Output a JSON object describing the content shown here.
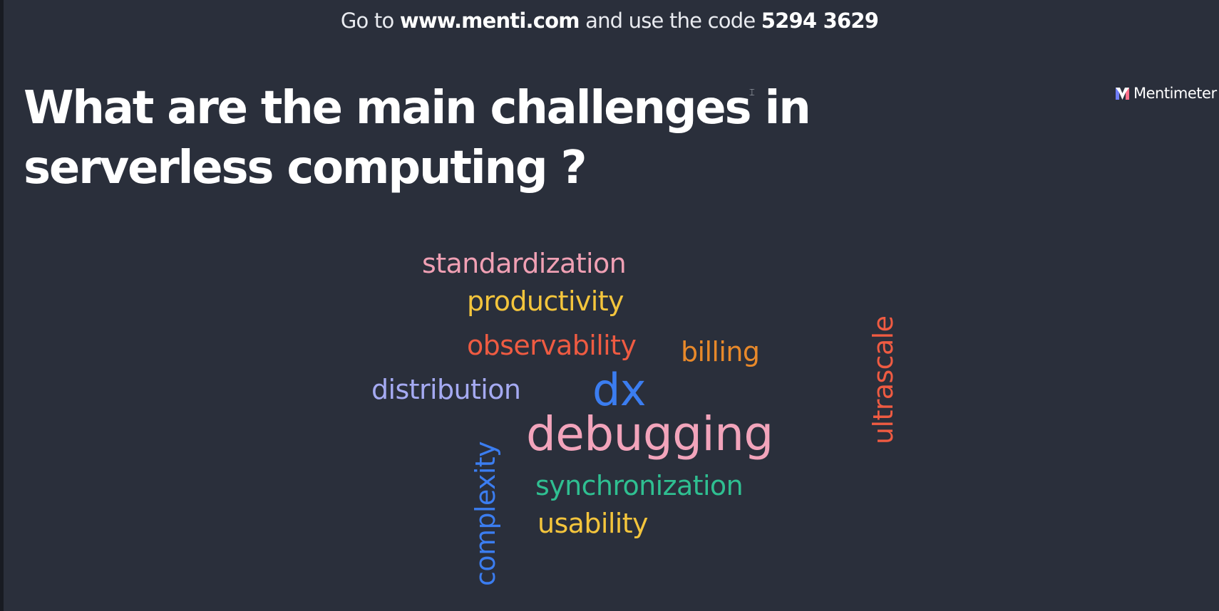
{
  "join_bar": {
    "prefix": "Go to",
    "url": "www.menti.com",
    "middle": "and use the code",
    "code": "5294 3629"
  },
  "question": "What are the main challenges in serverless computing ?",
  "brand": {
    "name": "Mentimeter",
    "icon": "mentimeter-logo-icon"
  },
  "cursor": {
    "icon": "text-cursor-icon"
  },
  "word_cloud": {
    "words": [
      {
        "text": "standardization",
        "color": "#f0a0b4"
      },
      {
        "text": "productivity",
        "color": "#f4c53c"
      },
      {
        "text": "observability",
        "color": "#ef5b42"
      },
      {
        "text": "billing",
        "color": "#e8892a"
      },
      {
        "text": "distribution",
        "color": "#a5aaf2"
      },
      {
        "text": "dx",
        "color": "#3b7df0"
      },
      {
        "text": "debugging",
        "color": "#f2a4bb"
      },
      {
        "text": "ultrascale",
        "color": "#ef5b42"
      },
      {
        "text": "synchronization",
        "color": "#2fbf91"
      },
      {
        "text": "usability",
        "color": "#f4c53c"
      },
      {
        "text": "complexity",
        "color": "#3b7df0"
      }
    ]
  }
}
